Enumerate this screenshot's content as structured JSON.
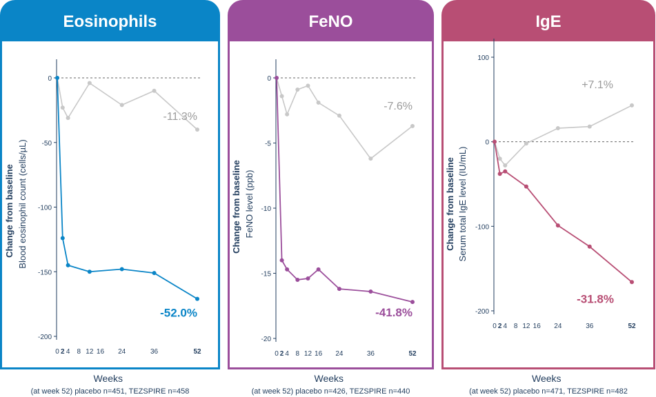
{
  "chart_data": [
    {
      "type": "line",
      "title": "Eosinophils",
      "color": "#0a85c7",
      "ylabel_bold": "Change from baseline",
      "ylabel": "Blood eosinophil count (cells/µL)",
      "xlabel": "Weeks",
      "ylim": [
        -200,
        0
      ],
      "yticks": [
        "0",
        "-50",
        "-100",
        "-150",
        "-200"
      ],
      "ytick_values": [
        0,
        -50,
        -100,
        -150,
        -200
      ],
      "xticks": [
        "0",
        "2",
        "4",
        "8",
        "12",
        "16",
        "24",
        "36",
        "52"
      ],
      "xtick_values": [
        0,
        2,
        4,
        8,
        12,
        16,
        24,
        36,
        52
      ],
      "xticks_bold": [
        "2",
        "52"
      ],
      "series": [
        {
          "role": "placebo",
          "color": "#c8c8c8",
          "x": [
            0,
            2,
            4,
            12,
            24,
            36,
            52
          ],
          "y": [
            0,
            -23,
            -31,
            -4,
            -21,
            -10,
            -40
          ],
          "label": "-11.3%"
        },
        {
          "role": "tezspire",
          "color": "#0a85c7",
          "x": [
            0,
            2,
            4,
            12,
            24,
            36,
            52
          ],
          "y": [
            0,
            -124,
            -145,
            -150,
            -148,
            -151,
            -171
          ],
          "label": "-52.0%"
        }
      ],
      "footnote": "(at week 52) placebo n=451, TEZSPIRE n=458"
    },
    {
      "type": "line",
      "title": "FeNO",
      "color": "#9b4e9b",
      "ylabel_bold": "Change from baseline",
      "ylabel": "FeNO level (ppb)",
      "xlabel": "Weeks",
      "ylim": [
        -20,
        0
      ],
      "yticks": [
        "0",
        "-5",
        "-10",
        "-15",
        "-20"
      ],
      "ytick_values": [
        0,
        -5,
        -10,
        -15,
        -20
      ],
      "xticks": [
        "0",
        "2",
        "4",
        "8",
        "12",
        "16",
        "24",
        "36",
        "52"
      ],
      "xtick_values": [
        0,
        2,
        4,
        8,
        12,
        16,
        24,
        36,
        52
      ],
      "xticks_bold": [
        "2",
        "52"
      ],
      "series": [
        {
          "role": "placebo",
          "color": "#c8c8c8",
          "x": [
            0,
            2,
            4,
            8,
            12,
            16,
            24,
            36,
            52
          ],
          "y": [
            0,
            -1.4,
            -2.8,
            -0.9,
            -0.6,
            -1.9,
            -2.9,
            -6.2,
            -3.7
          ],
          "label": "-7.6%"
        },
        {
          "role": "tezspire",
          "color": "#9b4e9b",
          "x": [
            0,
            2,
            4,
            8,
            12,
            16,
            24,
            36,
            52
          ],
          "y": [
            0,
            -14.0,
            -14.7,
            -15.5,
            -15.4,
            -14.7,
            -16.2,
            -16.4,
            -17.2
          ],
          "label": "-41.8%"
        }
      ],
      "footnote": "(at week 52) placebo n=426, TEZSPIRE n=440"
    },
    {
      "type": "line",
      "title": "IgE",
      "color": "#b84e74",
      "ylabel_bold": "Change from baseline",
      "ylabel": "Serum total IgE level (IU/mL)",
      "xlabel": "Weeks",
      "ylim": [
        -200,
        100
      ],
      "yticks": [
        "100",
        "0",
        "-100",
        "-200"
      ],
      "ytick_values": [
        100,
        0,
        -100,
        -200
      ],
      "xticks": [
        "0",
        "2",
        "4",
        "8",
        "12",
        "16",
        "24",
        "36",
        "52"
      ],
      "xtick_values": [
        0,
        2,
        4,
        8,
        12,
        16,
        24,
        36,
        52
      ],
      "xticks_bold": [
        "2",
        "52"
      ],
      "series": [
        {
          "role": "placebo",
          "color": "#c8c8c8",
          "x": [
            0,
            2,
            4,
            12,
            24,
            36,
            52
          ],
          "y": [
            0,
            -20,
            -28,
            -2,
            16,
            18,
            43
          ],
          "label": "+7.1%"
        },
        {
          "role": "tezspire",
          "color": "#b84e74",
          "x": [
            0,
            2,
            4,
            12,
            24,
            36,
            52
          ],
          "y": [
            0,
            -38,
            -35,
            -53,
            -99,
            -124,
            -166
          ],
          "label": "-31.8%"
        }
      ],
      "footnote": "(at week 52) placebo n=471, TEZSPIRE n=482"
    }
  ]
}
